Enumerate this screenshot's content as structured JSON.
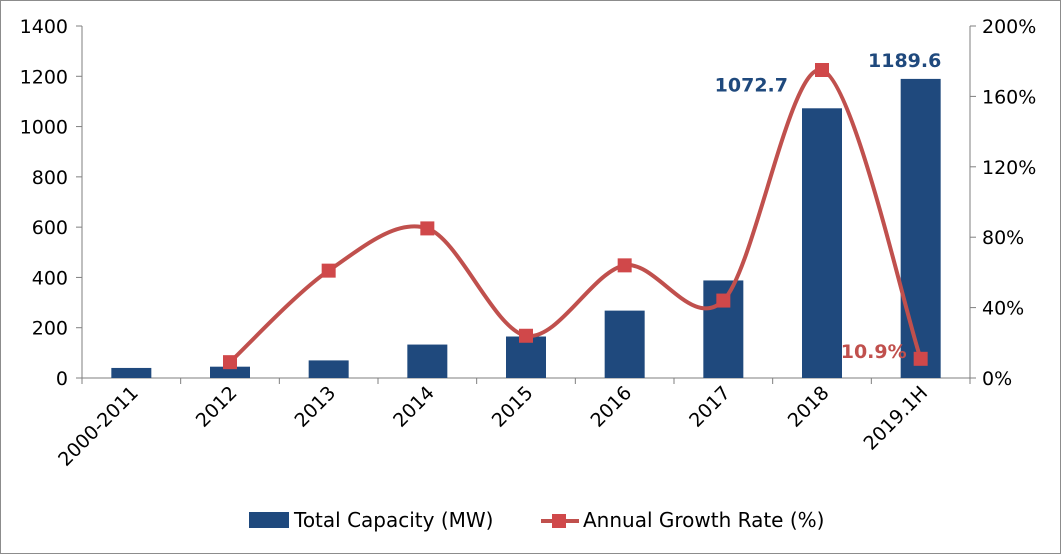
{
  "chart_data": {
    "type": "bar",
    "categories": [
      "2000-2011",
      "2012",
      "2013",
      "2014",
      "2015",
      "2016",
      "2017",
      "2018",
      "2019.1H"
    ],
    "series": [
      {
        "name": "Total Capacity (MW)",
        "type": "bar",
        "axis": "left",
        "color": "#1f497d",
        "values": [
          40,
          45,
          70,
          133,
          165,
          268,
          388,
          1072.7,
          1189.6
        ]
      },
      {
        "name": "Annual Growth Rate (%)",
        "type": "line",
        "axis": "right",
        "color": "#c0504d",
        "marker_color": "#d0484a",
        "values": [
          null,
          9,
          61,
          85,
          24,
          64,
          44,
          175,
          10.9
        ]
      }
    ],
    "y_left": {
      "ylim": [
        0,
        1400
      ],
      "ticks": [
        "0",
        "200",
        "400",
        "600",
        "800",
        "1000",
        "1200",
        "1400"
      ],
      "tick_values": [
        0,
        200,
        400,
        600,
        800,
        1000,
        1200,
        1400
      ]
    },
    "y_right": {
      "ylim": [
        0,
        200
      ],
      "ticks": [
        "0%",
        "40%",
        "80%",
        "120%",
        "160%",
        "200%"
      ],
      "tick_values": [
        0,
        40,
        80,
        120,
        160,
        200
      ]
    },
    "data_labels": {
      "bars": [
        {
          "index": 7,
          "text": "1072.7"
        },
        {
          "index": 8,
          "text": "1189.6"
        }
      ],
      "line": [
        {
          "index": 8,
          "text": "10.9%"
        }
      ]
    },
    "legend": {
      "placement": "bottom",
      "entries": [
        "Total Capacity (MW)",
        "Annual Growth Rate (%)"
      ]
    },
    "grid": false
  }
}
